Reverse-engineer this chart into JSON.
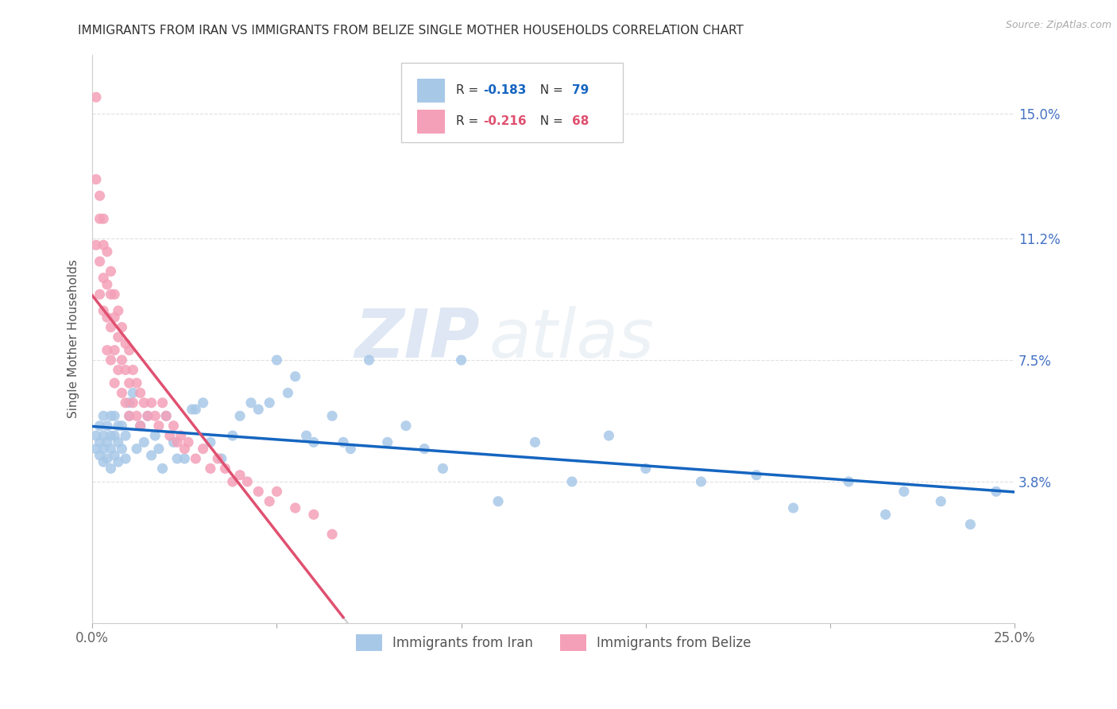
{
  "title": "IMMIGRANTS FROM IRAN VS IMMIGRANTS FROM BELIZE SINGLE MOTHER HOUSEHOLDS CORRELATION CHART",
  "source": "Source: ZipAtlas.com",
  "ylabel": "Single Mother Households",
  "ytick_labels": [
    "3.8%",
    "7.5%",
    "11.2%",
    "15.0%"
  ],
  "ytick_values": [
    0.038,
    0.075,
    0.112,
    0.15
  ],
  "xlim": [
    0.0,
    0.25
  ],
  "ylim": [
    -0.005,
    0.168
  ],
  "iran_color": "#a8c8e8",
  "belize_color": "#f4a0b8",
  "iran_line_color": "#1565c0",
  "belize_line_color": "#e05070",
  "trendline_color": "#cccccc",
  "iran_R": -0.183,
  "iran_N": 79,
  "belize_R": -0.216,
  "belize_N": 68,
  "iran_x": [
    0.001,
    0.001,
    0.002,
    0.002,
    0.002,
    0.003,
    0.003,
    0.003,
    0.003,
    0.004,
    0.004,
    0.004,
    0.005,
    0.005,
    0.005,
    0.005,
    0.006,
    0.006,
    0.006,
    0.007,
    0.007,
    0.007,
    0.008,
    0.008,
    0.009,
    0.009,
    0.01,
    0.01,
    0.011,
    0.012,
    0.013,
    0.014,
    0.015,
    0.016,
    0.017,
    0.018,
    0.019,
    0.02,
    0.022,
    0.023,
    0.025,
    0.027,
    0.028,
    0.03,
    0.032,
    0.035,
    0.038,
    0.04,
    0.043,
    0.045,
    0.048,
    0.05,
    0.053,
    0.055,
    0.058,
    0.06,
    0.065,
    0.068,
    0.07,
    0.075,
    0.08,
    0.085,
    0.09,
    0.095,
    0.1,
    0.11,
    0.12,
    0.13,
    0.14,
    0.15,
    0.165,
    0.18,
    0.19,
    0.205,
    0.215,
    0.22,
    0.23,
    0.238,
    0.245
  ],
  "iran_y": [
    0.048,
    0.052,
    0.046,
    0.05,
    0.055,
    0.044,
    0.048,
    0.052,
    0.058,
    0.045,
    0.05,
    0.055,
    0.042,
    0.048,
    0.052,
    0.058,
    0.046,
    0.052,
    0.058,
    0.044,
    0.05,
    0.055,
    0.048,
    0.055,
    0.045,
    0.052,
    0.062,
    0.058,
    0.065,
    0.048,
    0.055,
    0.05,
    0.058,
    0.046,
    0.052,
    0.048,
    0.042,
    0.058,
    0.05,
    0.045,
    0.045,
    0.06,
    0.06,
    0.062,
    0.05,
    0.045,
    0.052,
    0.058,
    0.062,
    0.06,
    0.062,
    0.075,
    0.065,
    0.07,
    0.052,
    0.05,
    0.058,
    0.05,
    0.048,
    0.075,
    0.05,
    0.055,
    0.048,
    0.042,
    0.075,
    0.032,
    0.05,
    0.038,
    0.052,
    0.042,
    0.038,
    0.04,
    0.03,
    0.038,
    0.028,
    0.035,
    0.032,
    0.025,
    0.035
  ],
  "belize_x": [
    0.001,
    0.001,
    0.001,
    0.002,
    0.002,
    0.002,
    0.002,
    0.003,
    0.003,
    0.003,
    0.003,
    0.004,
    0.004,
    0.004,
    0.004,
    0.005,
    0.005,
    0.005,
    0.005,
    0.006,
    0.006,
    0.006,
    0.006,
    0.007,
    0.007,
    0.007,
    0.008,
    0.008,
    0.008,
    0.009,
    0.009,
    0.009,
    0.01,
    0.01,
    0.01,
    0.011,
    0.011,
    0.012,
    0.012,
    0.013,
    0.013,
    0.014,
    0.015,
    0.016,
    0.017,
    0.018,
    0.019,
    0.02,
    0.021,
    0.022,
    0.023,
    0.024,
    0.025,
    0.026,
    0.028,
    0.03,
    0.032,
    0.034,
    0.036,
    0.038,
    0.04,
    0.042,
    0.045,
    0.048,
    0.05,
    0.055,
    0.06,
    0.065
  ],
  "belize_y": [
    0.155,
    0.13,
    0.11,
    0.125,
    0.118,
    0.105,
    0.095,
    0.118,
    0.11,
    0.1,
    0.09,
    0.108,
    0.098,
    0.088,
    0.078,
    0.102,
    0.095,
    0.085,
    0.075,
    0.095,
    0.088,
    0.078,
    0.068,
    0.09,
    0.082,
    0.072,
    0.085,
    0.075,
    0.065,
    0.08,
    0.072,
    0.062,
    0.078,
    0.068,
    0.058,
    0.072,
    0.062,
    0.068,
    0.058,
    0.065,
    0.055,
    0.062,
    0.058,
    0.062,
    0.058,
    0.055,
    0.062,
    0.058,
    0.052,
    0.055,
    0.05,
    0.052,
    0.048,
    0.05,
    0.045,
    0.048,
    0.042,
    0.045,
    0.042,
    0.038,
    0.04,
    0.038,
    0.035,
    0.032,
    0.035,
    0.03,
    0.028,
    0.022
  ],
  "watermark_zip": "ZIP",
  "watermark_atlas": "atlas",
  "background_color": "#ffffff",
  "grid_color": "#dddddd",
  "xtick_labels": [
    "0.0%",
    "",
    "",
    "",
    "",
    "25.0%"
  ],
  "xtick_values": [
    0.0,
    0.05,
    0.1,
    0.15,
    0.2,
    0.25
  ]
}
